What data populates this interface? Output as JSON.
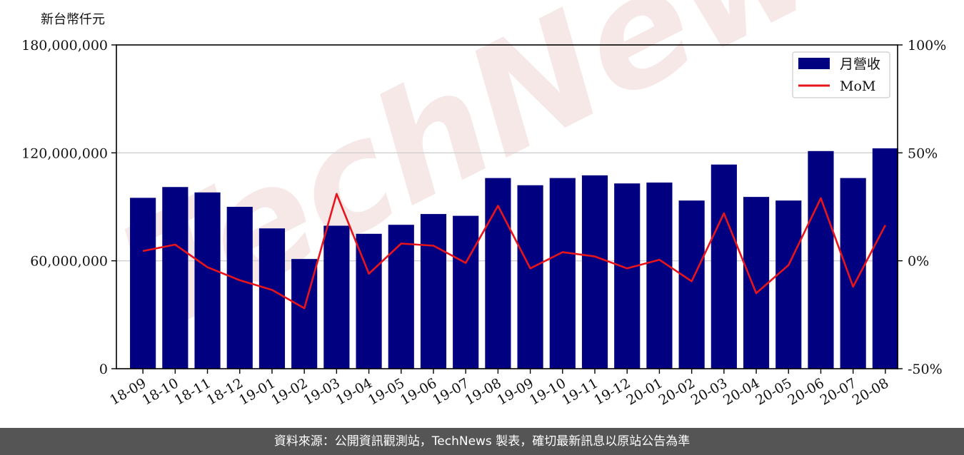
{
  "chart_data": {
    "type": "bar",
    "unit_label": "新台幣仟元",
    "categories": [
      "18-09",
      "18-10",
      "18-11",
      "18-12",
      "19-01",
      "19-02",
      "19-03",
      "19-04",
      "19-05",
      "19-06",
      "19-07",
      "19-08",
      "19-09",
      "19-10",
      "19-11",
      "19-12",
      "20-01",
      "20-02",
      "20-03",
      "20-04",
      "20-05",
      "20-06",
      "20-07",
      "20-08"
    ],
    "series": [
      {
        "name": "月營收",
        "type": "bar",
        "axis": "left",
        "color": "#000080",
        "values": [
          95000000,
          101000000,
          98000000,
          90000000,
          78000000,
          61000000,
          79500000,
          75000000,
          80000000,
          86000000,
          85000000,
          106000000,
          102000000,
          106000000,
          107500000,
          103000000,
          103500000,
          93500000,
          113500000,
          95500000,
          93500000,
          121000000,
          106000000,
          122500000
        ]
      },
      {
        "name": "MoM",
        "type": "line",
        "axis": "right",
        "color": "#e8141b",
        "values": [
          4.5,
          7.5,
          -3,
          -9,
          -13.5,
          -22,
          31,
          -6,
          8,
          7,
          -1,
          25.5,
          -3.5,
          4,
          2,
          -3.5,
          0.5,
          -9.5,
          22,
          -15,
          -2,
          29,
          -12,
          16.5
        ]
      }
    ],
    "left_axis": {
      "ylim": [
        0,
        180000000
      ],
      "ticks": [
        "0",
        "60,000,000",
        "120,000,000",
        "180,000,000"
      ],
      "tick_values": [
        0,
        60000000,
        120000000,
        180000000
      ]
    },
    "right_axis": {
      "ylim": [
        -50,
        100
      ],
      "ticks": [
        "-50%",
        "0%",
        "50%",
        "100%"
      ],
      "tick_values": [
        -50,
        0,
        50,
        100
      ]
    },
    "grid": "horizontal",
    "legend": "top-right",
    "watermark": "TechNews"
  },
  "footer": {
    "source_text": "資料來源：公開資訊觀測站，TechNews 製表，確切最新訊息以原站公告為準"
  }
}
